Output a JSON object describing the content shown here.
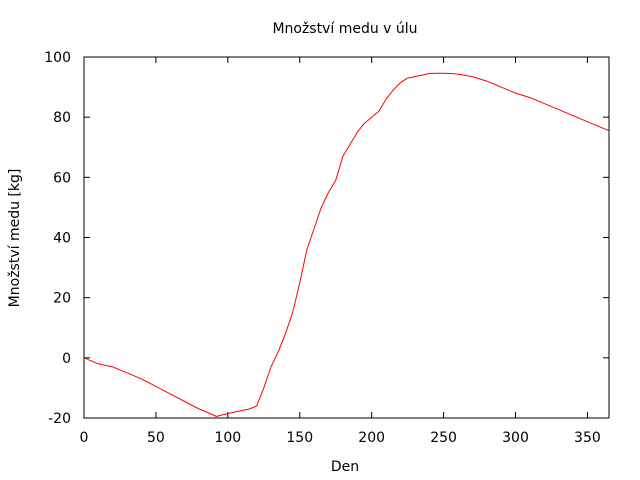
{
  "chart_data": {
    "type": "line",
    "title": "Množství medu v úlu",
    "xlabel": "Den",
    "ylabel": "Množství medu [kg]",
    "xlim": [
      0,
      365
    ],
    "ylim": [
      -20,
      100
    ],
    "xticks": [
      0,
      50,
      100,
      150,
      200,
      250,
      300,
      350
    ],
    "yticks": [
      -20,
      0,
      20,
      40,
      60,
      80,
      100
    ],
    "grid": false,
    "legend": "none",
    "series": [
      {
        "color": "#ff0000",
        "x": [
          0,
          10,
          20,
          30,
          40,
          50,
          60,
          70,
          80,
          90,
          92,
          100,
          110,
          115,
          120,
          125,
          130,
          135,
          140,
          145,
          150,
          155,
          160,
          165,
          170,
          175,
          180,
          185,
          190,
          195,
          200,
          205,
          210,
          215,
          220,
          225,
          230,
          235,
          240,
          245,
          250,
          255,
          260,
          270,
          280,
          290,
          300,
          310,
          320,
          330,
          340,
          350,
          360,
          365
        ],
        "y": [
          0,
          -2,
          -3,
          -5,
          -7,
          -9.5,
          -12,
          -14.5,
          -17,
          -19,
          -19.5,
          -18.5,
          -17.5,
          -17,
          -16,
          -10,
          -3,
          2,
          8,
          15,
          25,
          36,
          43,
          50,
          55,
          59,
          67,
          71,
          75,
          78,
          80,
          82,
          86,
          89,
          91.5,
          93,
          93.5,
          94,
          94.5,
          94.6,
          94.6,
          94.5,
          94.3,
          93.5,
          92,
          90,
          88,
          86.5,
          84.5,
          82.5,
          80.5,
          78.5,
          76.5,
          75.5
        ]
      }
    ]
  }
}
